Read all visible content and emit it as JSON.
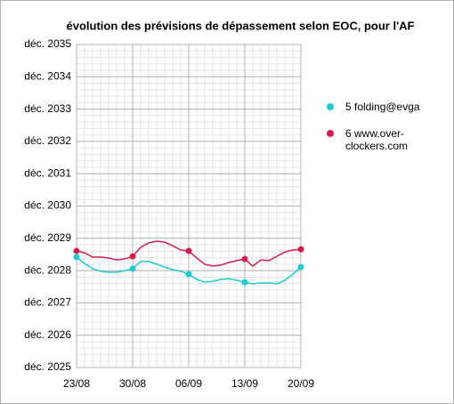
{
  "chart_data": {
    "type": "line",
    "title": "évolution des prévisions de dépassement selon EOC, pour l'AF",
    "x": [
      "23/08",
      null,
      null,
      null,
      null,
      null,
      null,
      "30/08",
      null,
      null,
      null,
      null,
      null,
      null,
      "06/09",
      null,
      null,
      null,
      null,
      null,
      null,
      "13/09",
      null,
      null,
      null,
      null,
      null,
      null,
      "20/09"
    ],
    "series": [
      {
        "name": "5 folding@evga",
        "color": "#1ccad0",
        "values": [
          2028.42,
          2028.22,
          2028.06,
          2027.98,
          2027.95,
          2027.95,
          2028.0,
          2028.06,
          2028.28,
          2028.28,
          2028.2,
          2028.11,
          2028.03,
          2027.98,
          2027.89,
          2027.73,
          2027.64,
          2027.67,
          2027.73,
          2027.75,
          2027.7,
          2027.64,
          2027.59,
          2027.62,
          2027.62,
          2027.59,
          2027.7,
          2027.89,
          2028.11
        ]
      },
      {
        "name": "6 www.over-clockers.com",
        "color": "#d61c4e",
        "values": [
          2028.61,
          2028.55,
          2028.42,
          2028.42,
          2028.39,
          2028.33,
          2028.36,
          2028.44,
          2028.72,
          2028.86,
          2028.91,
          2028.88,
          2028.77,
          2028.64,
          2028.61,
          2028.39,
          2028.2,
          2028.14,
          2028.17,
          2028.25,
          2028.31,
          2028.36,
          2028.14,
          2028.33,
          2028.31,
          2028.44,
          2028.58,
          2028.64,
          2028.66
        ]
      }
    ],
    "ylim": [
      2025,
      2035
    ],
    "yticks": [
      {
        "value": 2025,
        "label": "déc. 2025"
      },
      {
        "value": 2026,
        "label": "déc. 2026"
      },
      {
        "value": 2027,
        "label": "déc. 2027"
      },
      {
        "value": 2028,
        "label": "déc. 2028"
      },
      {
        "value": 2029,
        "label": "déc. 2029"
      },
      {
        "value": 2030,
        "label": "déc. 2030"
      },
      {
        "value": 2031,
        "label": "déc. 2031"
      },
      {
        "value": 2032,
        "label": "déc. 2032"
      },
      {
        "value": 2033,
        "label": "déc. 2033"
      },
      {
        "value": 2034,
        "label": "déc. 2034"
      },
      {
        "value": 2035,
        "label": "déc. 2035"
      }
    ],
    "grid": true,
    "minor_grid": 5,
    "legend": "right"
  }
}
